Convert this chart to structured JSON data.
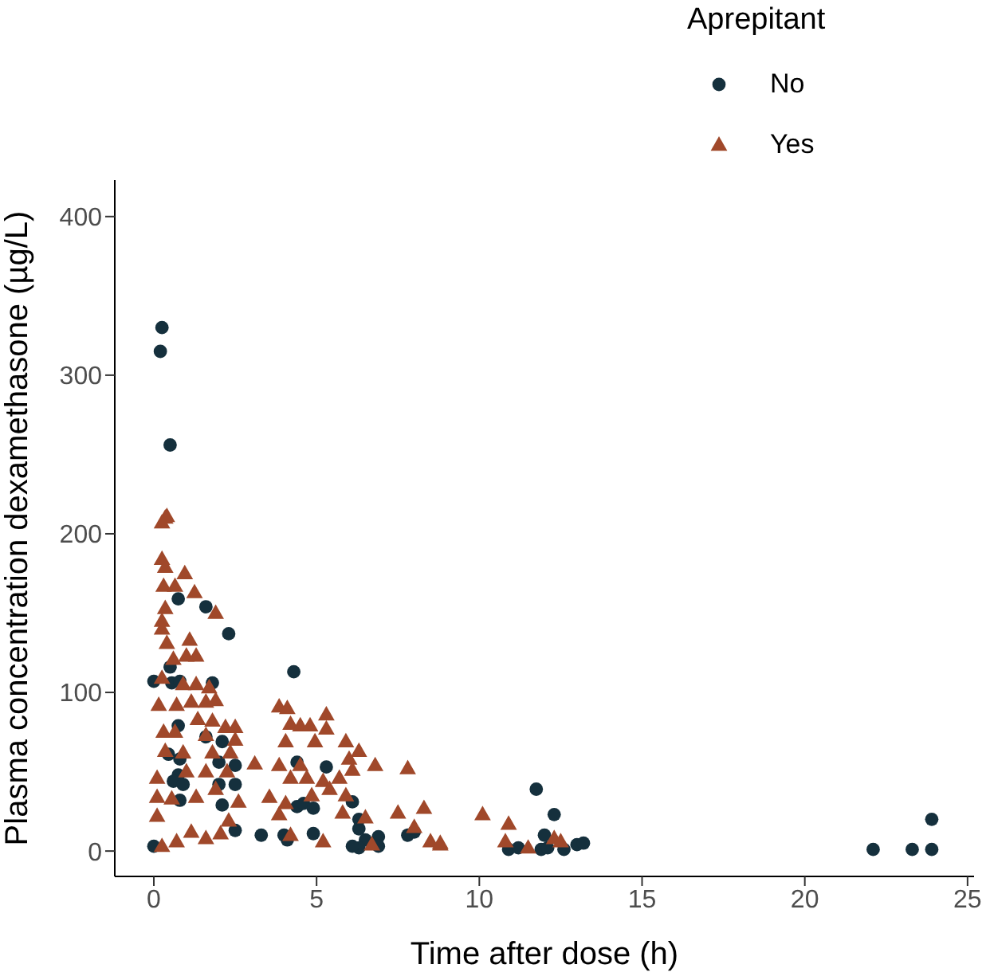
{
  "chart_data": {
    "type": "scatter",
    "xlabel": "Time after dose (h)",
    "ylabel": "Plasma concentration dexamethasone (µg/L)",
    "legend_title": "Aprepitant",
    "legend": "top right",
    "grid": false,
    "xlim": [
      -1.2,
      25.2
    ],
    "xticks": [
      0,
      5,
      10,
      15,
      20,
      25
    ],
    "ylim": [
      -16,
      423
    ],
    "yticks": [
      0,
      100,
      200,
      300,
      400
    ],
    "series": [
      {
        "name": "No",
        "color": "#15303d",
        "marker": "circle",
        "x": [
          0.25,
          0.2,
          0.5,
          0.75,
          1.6,
          2.3,
          4.3,
          0,
          0.55,
          0.8,
          1.8,
          0.5,
          0.75,
          1.6,
          2.1,
          0.45,
          0.8,
          2.0,
          2.5,
          0.75,
          2.0,
          0.6,
          0.9,
          2.5,
          0.8,
          2.1,
          2.5,
          3.3,
          4.0,
          0,
          5.3,
          4.4,
          4.4,
          4.6,
          4.9,
          6.1,
          4.1,
          4.9,
          6.3,
          6.3,
          6.5,
          6.9,
          8.0,
          6.9,
          6.3,
          7.8,
          6.1,
          11.75,
          12.3,
          12.0,
          10.9,
          11.2,
          11.9,
          12.1,
          12.6,
          13.0,
          13.2,
          22.1,
          23.3,
          23.9,
          23.9
        ],
        "values": [
          330,
          315,
          256,
          159,
          154,
          137,
          113,
          107,
          106,
          107,
          106,
          116,
          79,
          72,
          69,
          61,
          58,
          56,
          54,
          48,
          42,
          44,
          42,
          42,
          32,
          29,
          13,
          10,
          10,
          3,
          53,
          56,
          28,
          30,
          27,
          31,
          7,
          11,
          14,
          20,
          7,
          9,
          12,
          3,
          2,
          10,
          3,
          39,
          23,
          10,
          1,
          2,
          1,
          2,
          1,
          4,
          5,
          1,
          1,
          1,
          20
        ]
      },
      {
        "name": "Yes",
        "color": "#a0482a",
        "marker": "triangle",
        "x": [
          0.35,
          0.4,
          0.25,
          0.25,
          0.35,
          0.95,
          0.3,
          0.65,
          1.25,
          0.35,
          1.9,
          0.25,
          0.25,
          0.4,
          1.1,
          1.0,
          1.3,
          0.6,
          0.25,
          0.9,
          1.3,
          1.7,
          0.15,
          0.7,
          1.15,
          1.6,
          1.9,
          3.85,
          4.1,
          5.3,
          1.35,
          1.8,
          2.2,
          2.5,
          4.2,
          4.5,
          4.8,
          5.3,
          0.3,
          0.65,
          1.6,
          2.5,
          4.05,
          4.95,
          5.9,
          6.3,
          0.35,
          0.9,
          1.8,
          2.35,
          3.1,
          3.85,
          4.5,
          6.0,
          6.8,
          7.8,
          0.1,
          1.0,
          1.6,
          2.25,
          4.2,
          4.7,
          5.2,
          5.7,
          6.1,
          0.1,
          0.55,
          1.3,
          1.9,
          2.6,
          3.55,
          4.05,
          4.85,
          5.4,
          5.9,
          0.1,
          2.3,
          3.85,
          5.8,
          6.5,
          7.5,
          8.3,
          8.0,
          1.15,
          2.05,
          1.6,
          0.7,
          0.25,
          4.2,
          5.2,
          6.7,
          8.5,
          8.8,
          10.1,
          10.9,
          8.8,
          10.8,
          11.5,
          12.3,
          12.5
        ],
        "values": [
          210,
          211,
          207,
          184,
          179,
          175,
          167,
          167,
          163,
          153,
          150,
          145,
          140,
          131,
          133,
          123,
          123,
          121,
          109,
          105,
          105,
          103,
          92,
          92,
          94,
          94,
          95,
          91,
          90,
          86,
          83,
          82,
          78,
          78,
          80,
          79,
          79,
          77,
          75,
          75,
          73,
          70,
          69,
          69,
          69,
          63,
          63,
          62,
          62,
          62,
          55,
          54,
          54,
          58,
          54,
          52,
          46,
          50,
          50,
          50,
          46,
          46,
          44,
          46,
          51,
          34,
          33,
          34,
          39,
          31,
          34,
          30,
          35,
          39,
          35,
          22,
          19,
          23,
          24,
          21,
          24,
          27,
          15,
          12,
          11,
          8,
          6,
          3,
          10,
          6,
          4,
          6,
          4,
          23,
          17,
          5,
          6,
          2,
          8,
          6
        ]
      }
    ]
  }
}
